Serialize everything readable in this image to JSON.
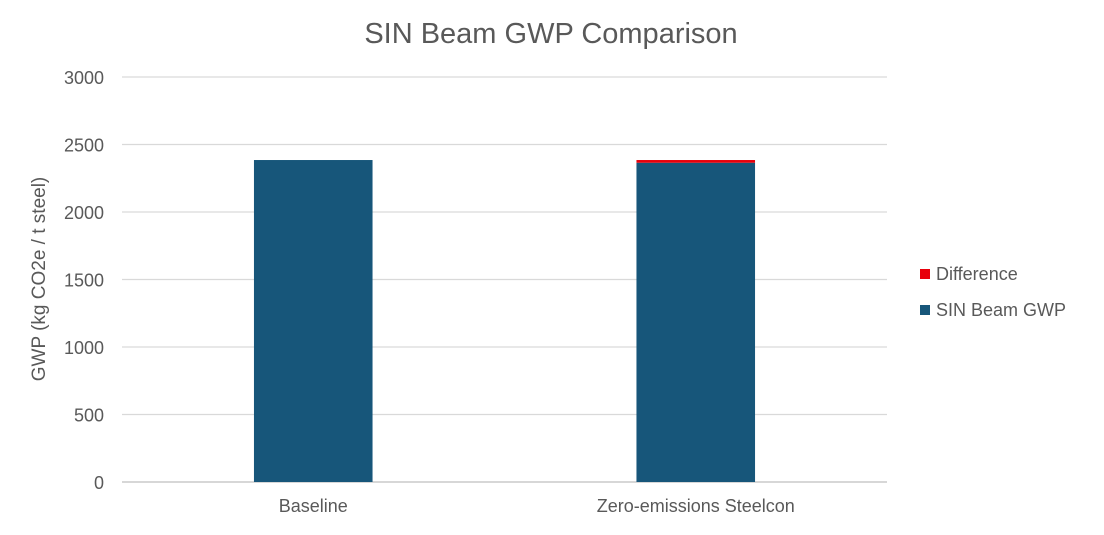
{
  "chart_data": {
    "type": "bar",
    "stacked": true,
    "title": "SIN Beam GWP Comparison",
    "xlabel": "",
    "ylabel": "GWP (kg CO2e / t steel)",
    "categories": [
      "Baseline",
      "Zero-emissions Steelcon"
    ],
    "series": [
      {
        "name": "SIN Beam GWP",
        "color": "#17567a",
        "values": [
          2385,
          2365
        ]
      },
      {
        "name": "Difference",
        "color": "#e8000b",
        "values": [
          0,
          20
        ]
      }
    ],
    "ylim": [
      0,
      3000
    ],
    "yticks": [
      0,
      500,
      1000,
      1500,
      2000,
      2500,
      3000
    ],
    "grid": true,
    "legend": {
      "position": "right",
      "order": [
        "Difference",
        "SIN Beam GWP"
      ]
    }
  }
}
